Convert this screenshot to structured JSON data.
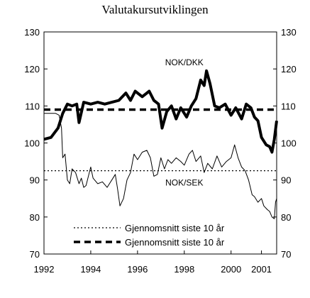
{
  "chart_data": {
    "type": "line",
    "title": "Valutakursutviklingen",
    "xlim": [
      1992,
      2001.95
    ],
    "ylim": [
      70,
      130
    ],
    "x_ticks": [
      "1992",
      "1994",
      "1996",
      "1998",
      "2000",
      "2001"
    ],
    "x_tick_values": [
      1992,
      1994,
      1996,
      1998,
      2000,
      2001.3
    ],
    "y_ticks": [
      "70",
      "80",
      "90",
      "100",
      "110",
      "120",
      "130"
    ],
    "y_tick_values": [
      70,
      80,
      90,
      100,
      110,
      120,
      130
    ],
    "grid": false,
    "series": [
      {
        "name": "NOK/DKK",
        "style": "thick-solid",
        "color": "#000000",
        "points": [
          [
            1992.0,
            101.0
          ],
          [
            1992.3,
            101.5
          ],
          [
            1992.6,
            104.0
          ],
          [
            1992.8,
            108.0
          ],
          [
            1993.0,
            110.5
          ],
          [
            1993.2,
            110.0
          ],
          [
            1993.4,
            110.5
          ],
          [
            1993.5,
            105.5
          ],
          [
            1993.7,
            111.0
          ],
          [
            1994.0,
            110.5
          ],
          [
            1994.3,
            111.0
          ],
          [
            1994.6,
            110.5
          ],
          [
            1994.9,
            111.0
          ],
          [
            1995.2,
            111.5
          ],
          [
            1995.5,
            113.5
          ],
          [
            1995.7,
            111.5
          ],
          [
            1995.9,
            114.0
          ],
          [
            1996.2,
            112.5
          ],
          [
            1996.5,
            114.0
          ],
          [
            1996.7,
            111.5
          ],
          [
            1996.9,
            110.5
          ],
          [
            1997.05,
            104.0
          ],
          [
            1997.25,
            108.5
          ],
          [
            1997.45,
            110.0
          ],
          [
            1997.65,
            106.5
          ],
          [
            1997.85,
            109.5
          ],
          [
            1998.1,
            107.0
          ],
          [
            1998.3,
            110.0
          ],
          [
            1998.5,
            112.0
          ],
          [
            1998.7,
            117.0
          ],
          [
            1998.85,
            115.5
          ],
          [
            1998.95,
            119.5
          ],
          [
            1999.1,
            116.0
          ],
          [
            1999.3,
            110.0
          ],
          [
            1999.5,
            109.5
          ],
          [
            1999.75,
            110.5
          ],
          [
            2000.0,
            107.5
          ],
          [
            2000.2,
            109.5
          ],
          [
            2000.45,
            106.5
          ],
          [
            2000.65,
            110.5
          ],
          [
            2000.85,
            109.5
          ],
          [
            2001.0,
            107.0
          ],
          [
            2001.15,
            106.0
          ],
          [
            2001.3,
            101.5
          ],
          [
            2001.5,
            99.5
          ],
          [
            2001.65,
            99.0
          ],
          [
            2001.75,
            97.5
          ],
          [
            2001.85,
            101.0
          ],
          [
            2001.95,
            106.0
          ]
        ]
      },
      {
        "name": "NOK/SEK",
        "style": "thin-solid",
        "color": "#000000",
        "points": [
          [
            1992.0,
            108.0
          ],
          [
            1992.3,
            108.0
          ],
          [
            1992.5,
            108.0
          ],
          [
            1992.65,
            107.5
          ],
          [
            1992.75,
            104.0
          ],
          [
            1992.8,
            96.0
          ],
          [
            1992.9,
            97.0
          ],
          [
            1993.0,
            90.0
          ],
          [
            1993.1,
            89.0
          ],
          [
            1993.2,
            93.0
          ],
          [
            1993.35,
            92.0
          ],
          [
            1993.5,
            89.0
          ],
          [
            1993.6,
            90.5
          ],
          [
            1993.7,
            88.0
          ],
          [
            1993.8,
            88.5
          ],
          [
            1993.9,
            91.0
          ],
          [
            1994.0,
            93.5
          ],
          [
            1994.1,
            90.5
          ],
          [
            1994.3,
            89.0
          ],
          [
            1994.5,
            89.5
          ],
          [
            1994.7,
            88.0
          ],
          [
            1994.9,
            90.0
          ],
          [
            1995.05,
            91.5
          ],
          [
            1995.15,
            87.5
          ],
          [
            1995.25,
            83.0
          ],
          [
            1995.4,
            85.0
          ],
          [
            1995.55,
            90.0
          ],
          [
            1995.7,
            92.0
          ],
          [
            1995.85,
            97.0
          ],
          [
            1996.0,
            95.5
          ],
          [
            1996.2,
            97.5
          ],
          [
            1996.4,
            98.0
          ],
          [
            1996.55,
            96.0
          ],
          [
            1996.7,
            91.0
          ],
          [
            1996.85,
            91.5
          ],
          [
            1997.0,
            96.0
          ],
          [
            1997.15,
            93.0
          ],
          [
            1997.3,
            95.5
          ],
          [
            1997.45,
            94.5
          ],
          [
            1997.65,
            96.0
          ],
          [
            1997.85,
            95.0
          ],
          [
            1998.0,
            94.0
          ],
          [
            1998.2,
            97.0
          ],
          [
            1998.35,
            98.0
          ],
          [
            1998.5,
            95.0
          ],
          [
            1998.7,
            96.5
          ],
          [
            1998.85,
            92.0
          ],
          [
            1999.0,
            94.5
          ],
          [
            1999.2,
            93.0
          ],
          [
            1999.4,
            96.5
          ],
          [
            1999.6,
            93.5
          ],
          [
            1999.8,
            95.0
          ],
          [
            2000.0,
            96.0
          ],
          [
            2000.15,
            99.5
          ],
          [
            2000.3,
            96.0
          ],
          [
            2000.45,
            93.5
          ],
          [
            2000.6,
            92.5
          ],
          [
            2000.75,
            90.0
          ],
          [
            2000.9,
            86.0
          ],
          [
            2001.0,
            85.5
          ],
          [
            2001.15,
            84.0
          ],
          [
            2001.3,
            85.0
          ],
          [
            2001.4,
            83.0
          ],
          [
            2001.55,
            82.0
          ],
          [
            2001.65,
            81.5
          ],
          [
            2001.75,
            80.0
          ],
          [
            2001.85,
            79.5
          ],
          [
            2001.9,
            84.0
          ],
          [
            2001.95,
            85.0
          ]
        ]
      },
      {
        "name": "Gjennomsnitt siste 10 år",
        "ref_series": "NOK/SEK",
        "style": "thin-dotted",
        "color": "#000000",
        "points": [
          [
            1992.0,
            92.5
          ],
          [
            2001.95,
            92.5
          ]
        ]
      },
      {
        "name": "Gjennomsnitt siste 10 år",
        "ref_series": "NOK/DKK",
        "style": "thick-dashed",
        "color": "#000000",
        "points": [
          [
            1992.0,
            109.0
          ],
          [
            2001.95,
            109.0
          ]
        ]
      }
    ],
    "series_labels": [
      {
        "text": "NOK/DKK",
        "x": 1998.0,
        "y": 121.0
      },
      {
        "text": "NOK/SEK",
        "x": 1998.0,
        "y": 88.5
      }
    ],
    "legend": {
      "placement": "bottom-center",
      "entries": [
        {
          "label": "Gjennomsnitt siste 10 år",
          "style": "thin-dotted"
        },
        {
          "label": "Gjennomsnitt siste 10 år",
          "style": "thick-dashed"
        }
      ]
    }
  }
}
